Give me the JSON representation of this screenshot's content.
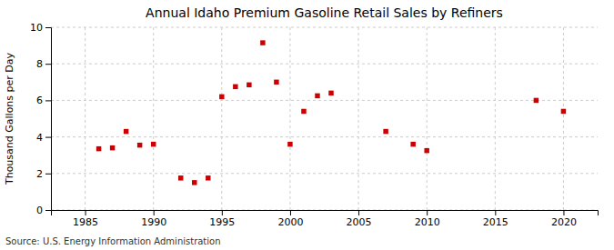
{
  "chart_data": {
    "type": "scatter",
    "title": "Annual Idaho Premium Gasoline Retail Sales by Refiners",
    "ylabel": "Thousand Gallons per Day",
    "source": "Source: U.S. Energy Information Administration",
    "color": "#cc0000",
    "marker": "square",
    "grid": true,
    "xlim": [
      1982.5,
      2022.5
    ],
    "ylim": [
      0,
      10
    ],
    "xticks": [
      1985,
      1990,
      1995,
      2000,
      2005,
      2010,
      2015,
      2020
    ],
    "yticks": [
      0,
      2,
      4,
      6,
      8,
      10
    ],
    "x": [
      1986,
      1987,
      1988,
      1989,
      1990,
      1992,
      1993,
      1994,
      1995,
      1996,
      1997,
      1998,
      1999,
      2000,
      2001,
      2002,
      2003,
      2007,
      2009,
      2010,
      2018,
      2020
    ],
    "values": [
      3.35,
      3.4,
      4.3,
      3.55,
      3.6,
      1.75,
      1.5,
      1.75,
      6.2,
      6.75,
      6.85,
      9.15,
      7.0,
      3.6,
      5.4,
      6.25,
      6.4,
      4.3,
      3.6,
      3.25,
      6.0,
      5.4
    ]
  }
}
